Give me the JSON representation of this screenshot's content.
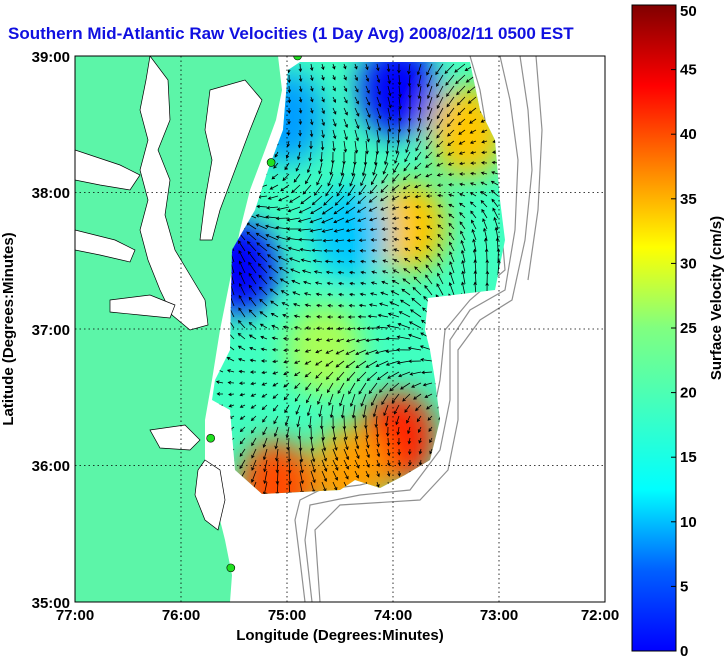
{
  "chart_data": {
    "type": "heatmap",
    "title": "Southern Mid-Atlantic Raw Velocities (1 Day Avg) 2008/02/11 0500 EST",
    "xlabel": "Longitude (Degrees:Minutes)",
    "ylabel": "Latitude (Degrees:Minutes)",
    "x_ticks": [
      "77:00",
      "76:00",
      "75:00",
      "74:00",
      "73:00",
      "72:00"
    ],
    "y_ticks": [
      "39:00",
      "38:00",
      "37:00",
      "36:00",
      "35:00"
    ],
    "xlim": [
      -77.0,
      -72.0
    ],
    "ylim": [
      35.0,
      39.0
    ],
    "grid": "dotted",
    "colorbar": {
      "label": "Surface Velocity (cm/s)",
      "range": [
        0,
        50
      ],
      "ticks": [
        "0",
        "5",
        "10",
        "15",
        "20",
        "25",
        "30",
        "35",
        "40",
        "45",
        "50"
      ],
      "colormap": "jet"
    },
    "colors": {
      "land": "#5cf5a8",
      "title": "#1010e0",
      "bathymetry": "#909090",
      "stations": "#20e020"
    },
    "velocity_blobs": [
      {
        "lon": -73.95,
        "lat": 38.75,
        "speed": 6
      },
      {
        "lon": -75.45,
        "lat": 37.45,
        "speed": 6
      },
      {
        "lon": -73.85,
        "lat": 37.75,
        "speed": 34
      },
      {
        "lon": -73.3,
        "lat": 38.45,
        "speed": 34
      },
      {
        "lon": -74.65,
        "lat": 36.85,
        "speed": 27
      },
      {
        "lon": -73.95,
        "lat": 36.2,
        "speed": 42
      },
      {
        "lon": -75.1,
        "lat": 35.85,
        "speed": 40
      },
      {
        "lon": -74.4,
        "lat": 35.95,
        "speed": 36
      },
      {
        "lon": -74.4,
        "lat": 37.7,
        "speed": 16
      },
      {
        "lon": -75.0,
        "lat": 38.55,
        "speed": 14
      }
    ],
    "stations": [
      {
        "lon": -74.9,
        "lat": 39.0
      },
      {
        "lon": -75.15,
        "lat": 38.22
      },
      {
        "lon": -75.72,
        "lat": 36.2
      },
      {
        "lon": -75.53,
        "lat": 35.25
      }
    ]
  }
}
